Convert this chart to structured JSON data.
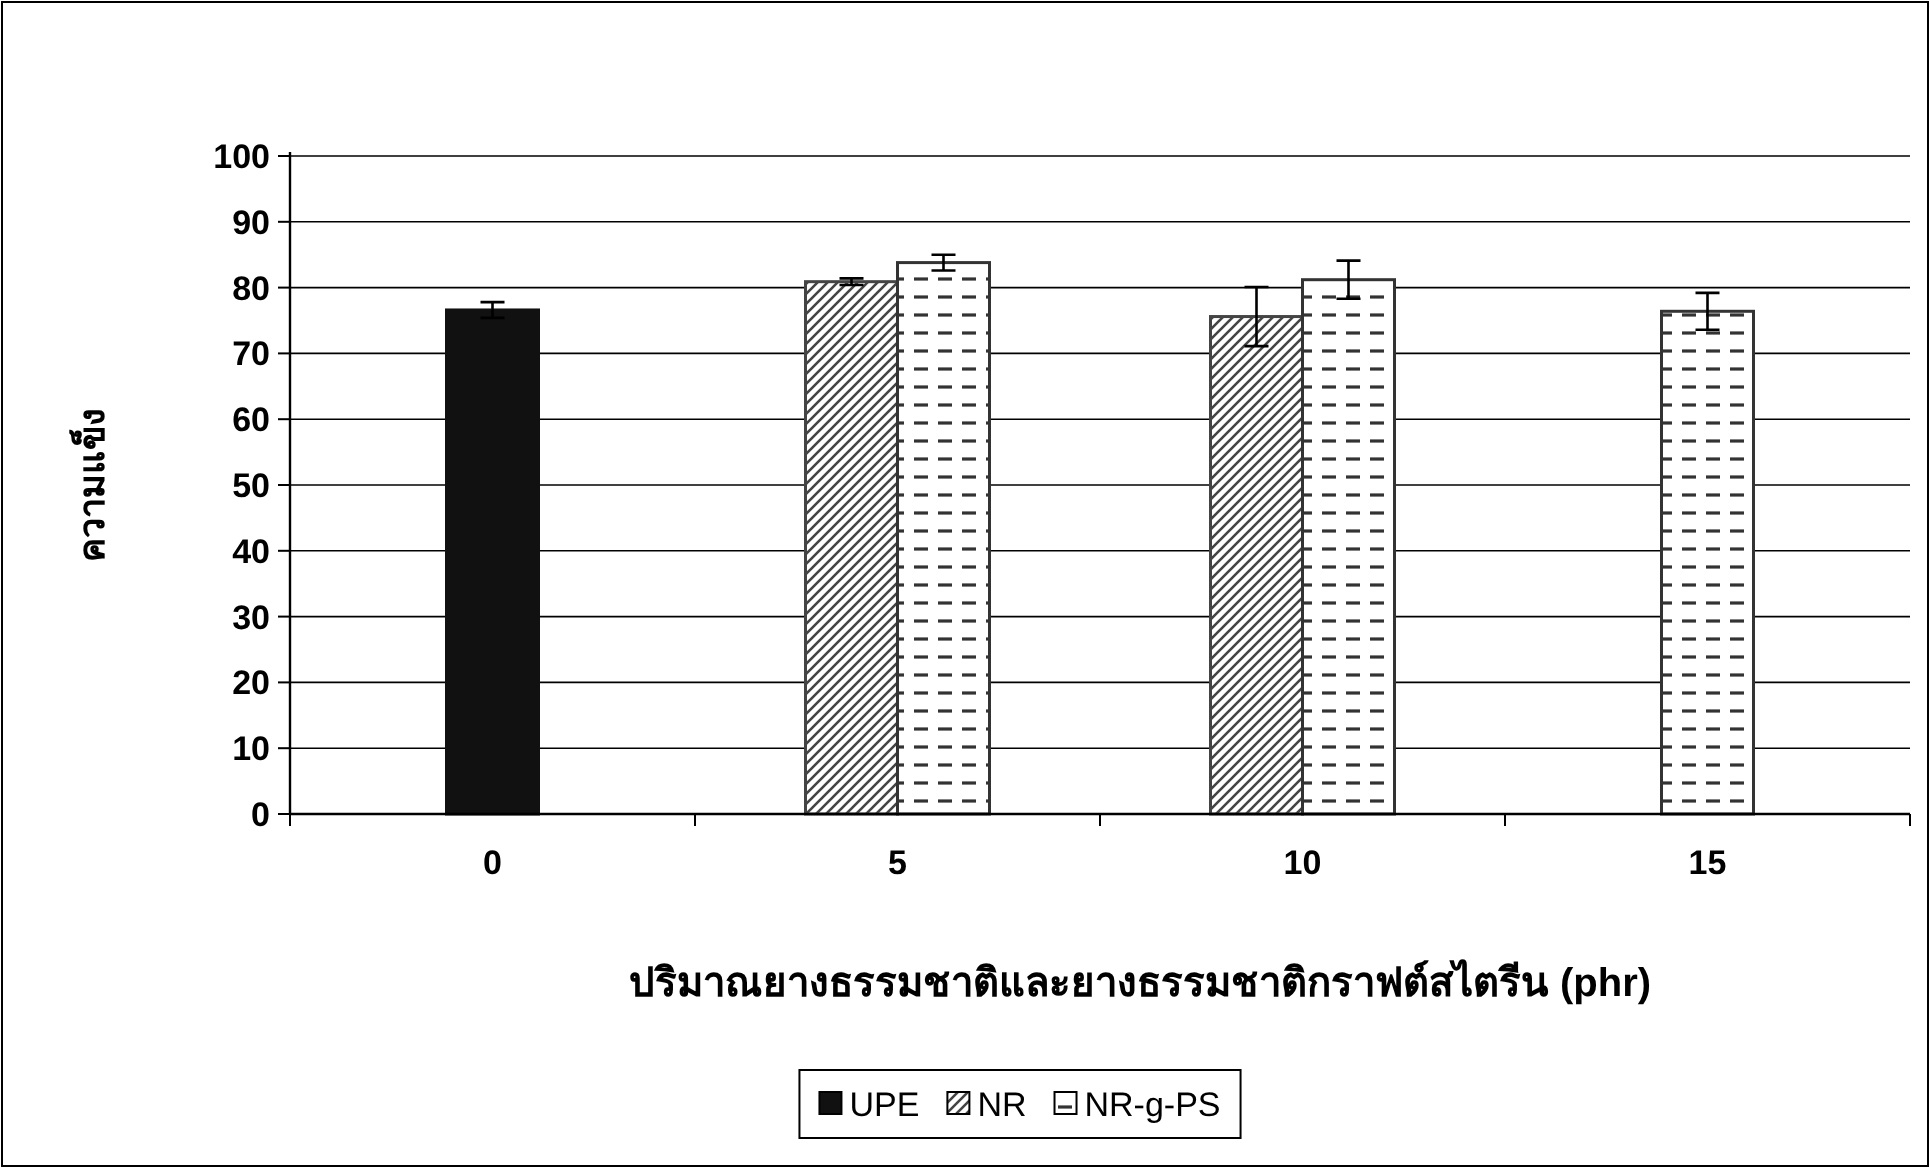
{
  "chart_data": {
    "type": "bar",
    "categories": [
      "0",
      "5",
      "10",
      "15"
    ],
    "series": [
      {
        "name": "UPE",
        "color": "#111111",
        "values": [
          76.6,
          null,
          null,
          null
        ],
        "errors": [
          1.2,
          null,
          null,
          null
        ]
      },
      {
        "name": "NR",
        "color": "#444444",
        "values": [
          null,
          80.9,
          75.6,
          null
        ],
        "errors": [
          null,
          0.5,
          4.5,
          null
        ]
      },
      {
        "name": "NR-g-PS",
        "color": "#333333",
        "values": [
          null,
          83.8,
          81.2,
          76.4
        ],
        "errors": [
          null,
          1.2,
          2.9,
          2.8
        ]
      }
    ],
    "xlabel": "ปริมาณยางธรรมชาติและยางธรรมชาติกราฟต์สไตรีน (phr)",
    "ylabel": "ความแข็ง",
    "ylim": [
      0,
      100
    ],
    "yticks": [
      0,
      10,
      20,
      30,
      40,
      50,
      60,
      70,
      80,
      90,
      100
    ],
    "grid": "y",
    "legend": "bottom"
  }
}
